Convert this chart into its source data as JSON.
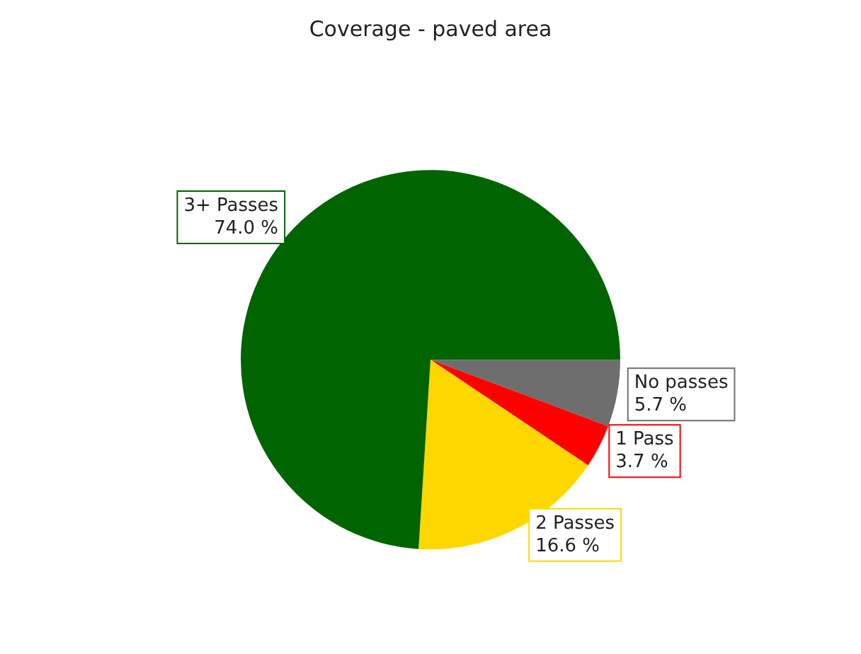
{
  "chart_data": {
    "type": "pie",
    "title": "Coverage - paved area",
    "categories": [
      "No passes",
      "1 Pass",
      "2 Passes",
      "3+ Passes"
    ],
    "values": [
      5.7,
      3.7,
      16.6,
      74.0
    ],
    "value_labels": [
      "5.7 %",
      "3.7 %",
      "16.6 %",
      "74.0 %"
    ],
    "colors": [
      "#6e6e6e",
      "#ff0000",
      "#ffd700",
      "#006400"
    ],
    "legend": false
  }
}
